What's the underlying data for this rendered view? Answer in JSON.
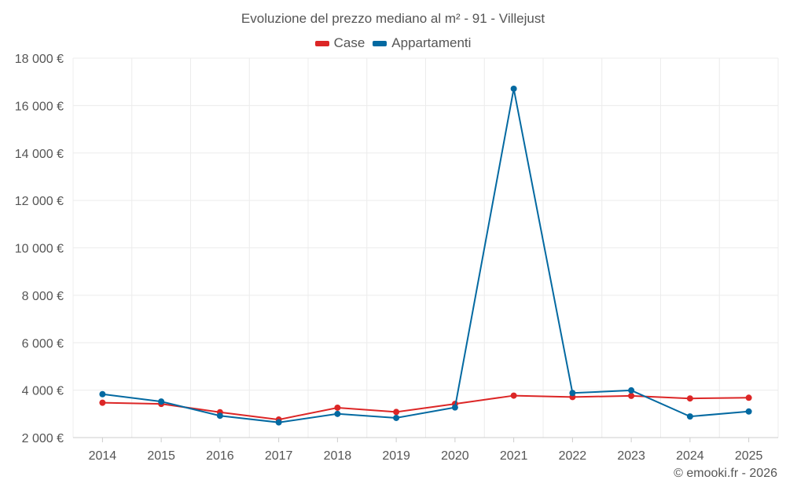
{
  "chart_data": {
    "type": "line",
    "title": "Evoluzione del prezzo mediano al m² - 91 - Villejust",
    "xlabel": "",
    "ylabel": "",
    "categories": [
      "2014",
      "2015",
      "2016",
      "2017",
      "2018",
      "2019",
      "2020",
      "2021",
      "2022",
      "2023",
      "2024",
      "2025"
    ],
    "ylim": [
      2000,
      18000
    ],
    "yticks": [
      2000,
      4000,
      6000,
      8000,
      10000,
      12000,
      14000,
      16000,
      18000
    ],
    "ytick_labels": [
      "2 000 €",
      "4 000 €",
      "6 000 €",
      "8 000 €",
      "10 000 €",
      "12 000 €",
      "14 000 €",
      "16 000 €",
      "18 000 €"
    ],
    "grid": true,
    "legend_position": "top-center",
    "series": [
      {
        "name": "Case",
        "color": "#dc2626",
        "values": [
          3470,
          3420,
          3070,
          2760,
          3260,
          3080,
          3420,
          3770,
          3710,
          3760,
          3650,
          3680
        ]
      },
      {
        "name": "Appartamenti",
        "color": "#0369a1",
        "values": [
          3830,
          3520,
          2920,
          2640,
          3000,
          2830,
          3270,
          16710,
          3880,
          3990,
          2890,
          3100
        ]
      }
    ]
  },
  "credit": "© emooki.fr - 2026"
}
